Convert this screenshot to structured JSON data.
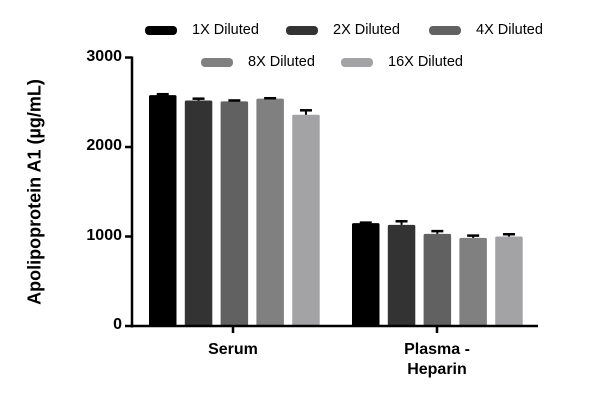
{
  "chart_data": {
    "type": "bar",
    "title": "",
    "xlabel": "",
    "ylabel": "Apolipoprotein A1 (µg/mL)",
    "ylim": [
      0,
      3000
    ],
    "yticks": [
      0,
      1000,
      2000,
      3000
    ],
    "grid": false,
    "legend_position": "top",
    "categories": [
      "Serum",
      "Plasma - Heparin"
    ],
    "category_lines": [
      [
        "Serum"
      ],
      [
        "Plasma -",
        "Heparin"
      ]
    ],
    "series": [
      {
        "name": "1X Diluted",
        "color": "#000000",
        "values": [
          2580,
          1150
        ],
        "errors": [
          10,
          5
        ]
      },
      {
        "name": "2X Diluted",
        "color": "#333333",
        "values": [
          2520,
          1130
        ],
        "errors": [
          20,
          40
        ]
      },
      {
        "name": "4X Diluted",
        "color": "#616161",
        "values": [
          2510,
          1030
        ],
        "errors": [
          10,
          30
        ]
      },
      {
        "name": "8X Diluted",
        "color": "#808080",
        "values": [
          2540,
          985
        ],
        "errors": [
          5,
          25
        ]
      },
      {
        "name": "16X Diluted",
        "color": "#a3a3a6",
        "values": [
          2360,
          1000
        ],
        "errors": [
          50,
          25
        ]
      }
    ]
  }
}
